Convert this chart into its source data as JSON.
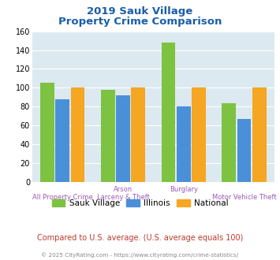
{
  "title_line1": "2019 Sauk Village",
  "title_line2": "Property Crime Comparison",
  "cat_labels_top": [
    "",
    "Arson",
    "Burglary",
    ""
  ],
  "cat_labels_bottom": [
    "All Property Crime",
    "Larceny & Theft",
    "",
    "Motor Vehicle Theft"
  ],
  "groups": [
    {
      "name": "Sauk Village",
      "color": "#7dc241",
      "values": [
        105,
        98,
        148,
        84
      ]
    },
    {
      "name": "Illinois",
      "color": "#4a90d9",
      "values": [
        88,
        92,
        80,
        67
      ]
    },
    {
      "name": "National",
      "color": "#f5a623",
      "values": [
        100,
        100,
        100,
        100
      ]
    }
  ],
  "ylim": [
    0,
    160
  ],
  "yticks": [
    0,
    20,
    40,
    60,
    80,
    100,
    120,
    140,
    160
  ],
  "plot_bg_color": "#dce9f0",
  "title_color": "#1a5ea8",
  "label_color": "#9b59b6",
  "subtitle_note": "Compared to U.S. average. (U.S. average equals 100)",
  "subtitle_note_color": "#c0392b",
  "footer": "© 2025 CityRating.com - https://www.cityrating.com/crime-statistics/",
  "footer_color": "#888888",
  "bar_width": 0.25
}
